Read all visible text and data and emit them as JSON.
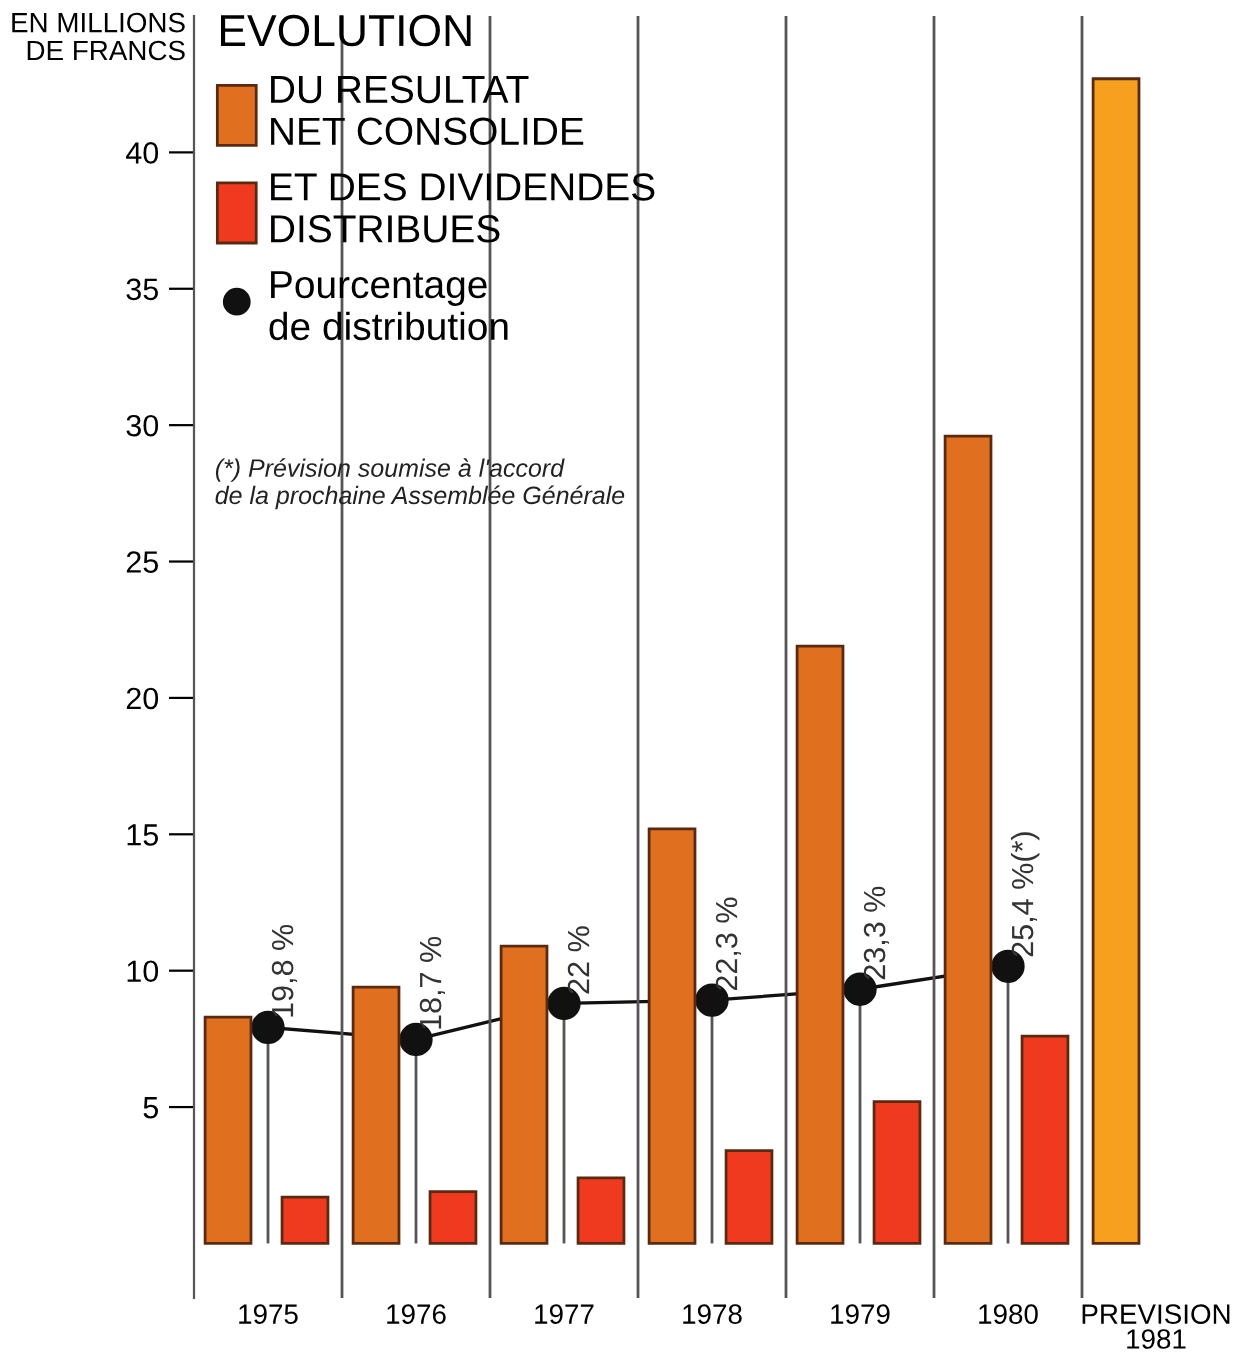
{
  "chart_data": {
    "type": "bar",
    "ylabel": "EN MILLIONS\nDE FRANCS",
    "legend_title": "EVOLUTION",
    "categories": [
      "1975",
      "1976",
      "1977",
      "1978",
      "1979",
      "1980",
      "PREVISION\n1981"
    ],
    "series": [
      {
        "name": "DU RESULTAT\nNET CONSOLIDE",
        "color": "#e07020",
        "colors": [
          "#e07020",
          "#e07020",
          "#e07020",
          "#e07020",
          "#e07020",
          "#e07020",
          "#f7a020"
        ],
        "values": [
          8.3,
          9.4,
          10.9,
          15.2,
          21.9,
          29.6,
          42.7
        ]
      },
      {
        "name": "ET DES DIVIDENDES\nDISTRIBUES",
        "color": "#f03a20",
        "values": [
          1.7,
          1.9,
          2.4,
          3.4,
          5.2,
          7.6,
          null
        ]
      },
      {
        "name": "Pourcentage\nde distribution",
        "type": "line",
        "axis": "y2",
        "color": "#111111",
        "marker": "circle",
        "values": [
          19.8,
          18.7,
          22,
          22.3,
          23.3,
          25.4,
          null
        ],
        "value_labels": [
          "19,8 %",
          "18,7 %",
          "22 %",
          "22,3 %",
          "23,3 %",
          "25,4 %(*)",
          null
        ]
      }
    ],
    "ylim": [
      -2,
      45
    ],
    "yticks": [
      5,
      10,
      15,
      20,
      25,
      30,
      35,
      40
    ],
    "y2lim": [
      -5,
      112.5
    ],
    "tick_labels": "xy",
    "grid": "x",
    "legend": "top left",
    "annotations": [
      "(*) Prévision soumise à l'accord\nde la prochaine Assemblée Générale"
    ]
  }
}
